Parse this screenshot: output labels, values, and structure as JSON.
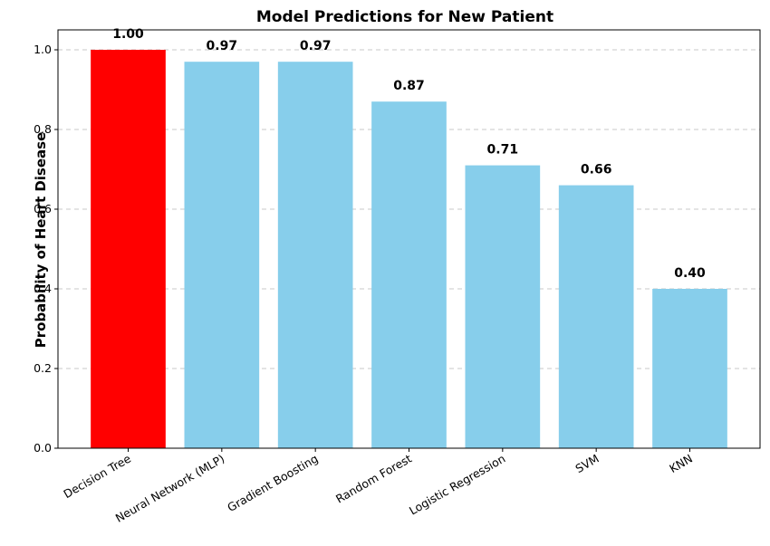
{
  "chart_data": {
    "type": "bar",
    "title": "Model Predictions for New Patient",
    "xlabel": "",
    "ylabel": "Probability of Heart Disease",
    "categories": [
      "Decision Tree",
      "Neural Network (MLP)",
      "Gradient Boosting",
      "Random Forest",
      "Logistic Regression",
      "SVM",
      "KNN"
    ],
    "values": [
      1.0,
      0.97,
      0.97,
      0.87,
      0.71,
      0.66,
      0.4
    ],
    "value_labels": [
      "1.00",
      "0.97",
      "0.97",
      "0.87",
      "0.71",
      "0.66",
      "0.40"
    ],
    "bar_colors": [
      "#ff0000",
      "#87ceeb",
      "#87ceeb",
      "#87ceeb",
      "#87ceeb",
      "#87ceeb",
      "#87ceeb"
    ],
    "ylim": [
      0,
      1.05
    ],
    "yticks": [
      0.0,
      0.2,
      0.4,
      0.6,
      0.8,
      1.0
    ],
    "ytick_labels": [
      "0.0",
      "0.2",
      "0.4",
      "0.6",
      "0.8",
      "1.0"
    ],
    "grid": "y-dashed",
    "legend": "none"
  }
}
